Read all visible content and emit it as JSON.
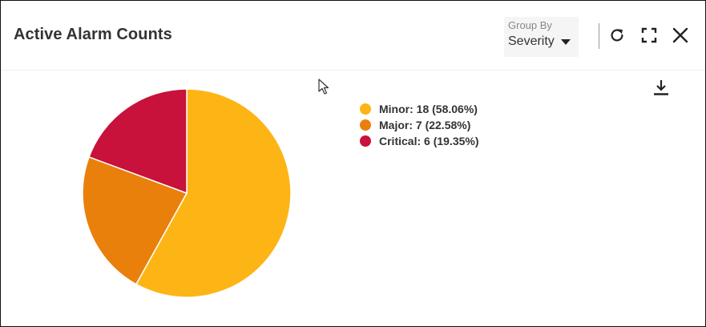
{
  "widget": {
    "title": "Active Alarm Counts"
  },
  "group_by": {
    "label": "Group By",
    "value": "Severity"
  },
  "icons": {
    "refresh": "refresh-icon",
    "expand": "expand-icon",
    "close": "close-icon",
    "download": "download-icon",
    "cursor": "mouse-pointer-icon"
  },
  "colors": {
    "minor": "#FDB515",
    "major": "#E9800C",
    "critical": "#C8113B"
  },
  "legend": {
    "items": [
      {
        "label": "Minor: 18 (58.06%)"
      },
      {
        "label": "Major: 7 (22.58%)"
      },
      {
        "label": "Critical: 6 (19.35%)"
      }
    ]
  },
  "chart_data": {
    "type": "pie",
    "title": "Active Alarm Counts",
    "categories": [
      "Minor",
      "Major",
      "Critical"
    ],
    "values": [
      18,
      7,
      6
    ],
    "percentages": [
      58.06,
      22.58,
      19.35
    ],
    "colors": [
      "#FDB515",
      "#E9800C",
      "#C8113B"
    ],
    "legend_position": "right"
  }
}
